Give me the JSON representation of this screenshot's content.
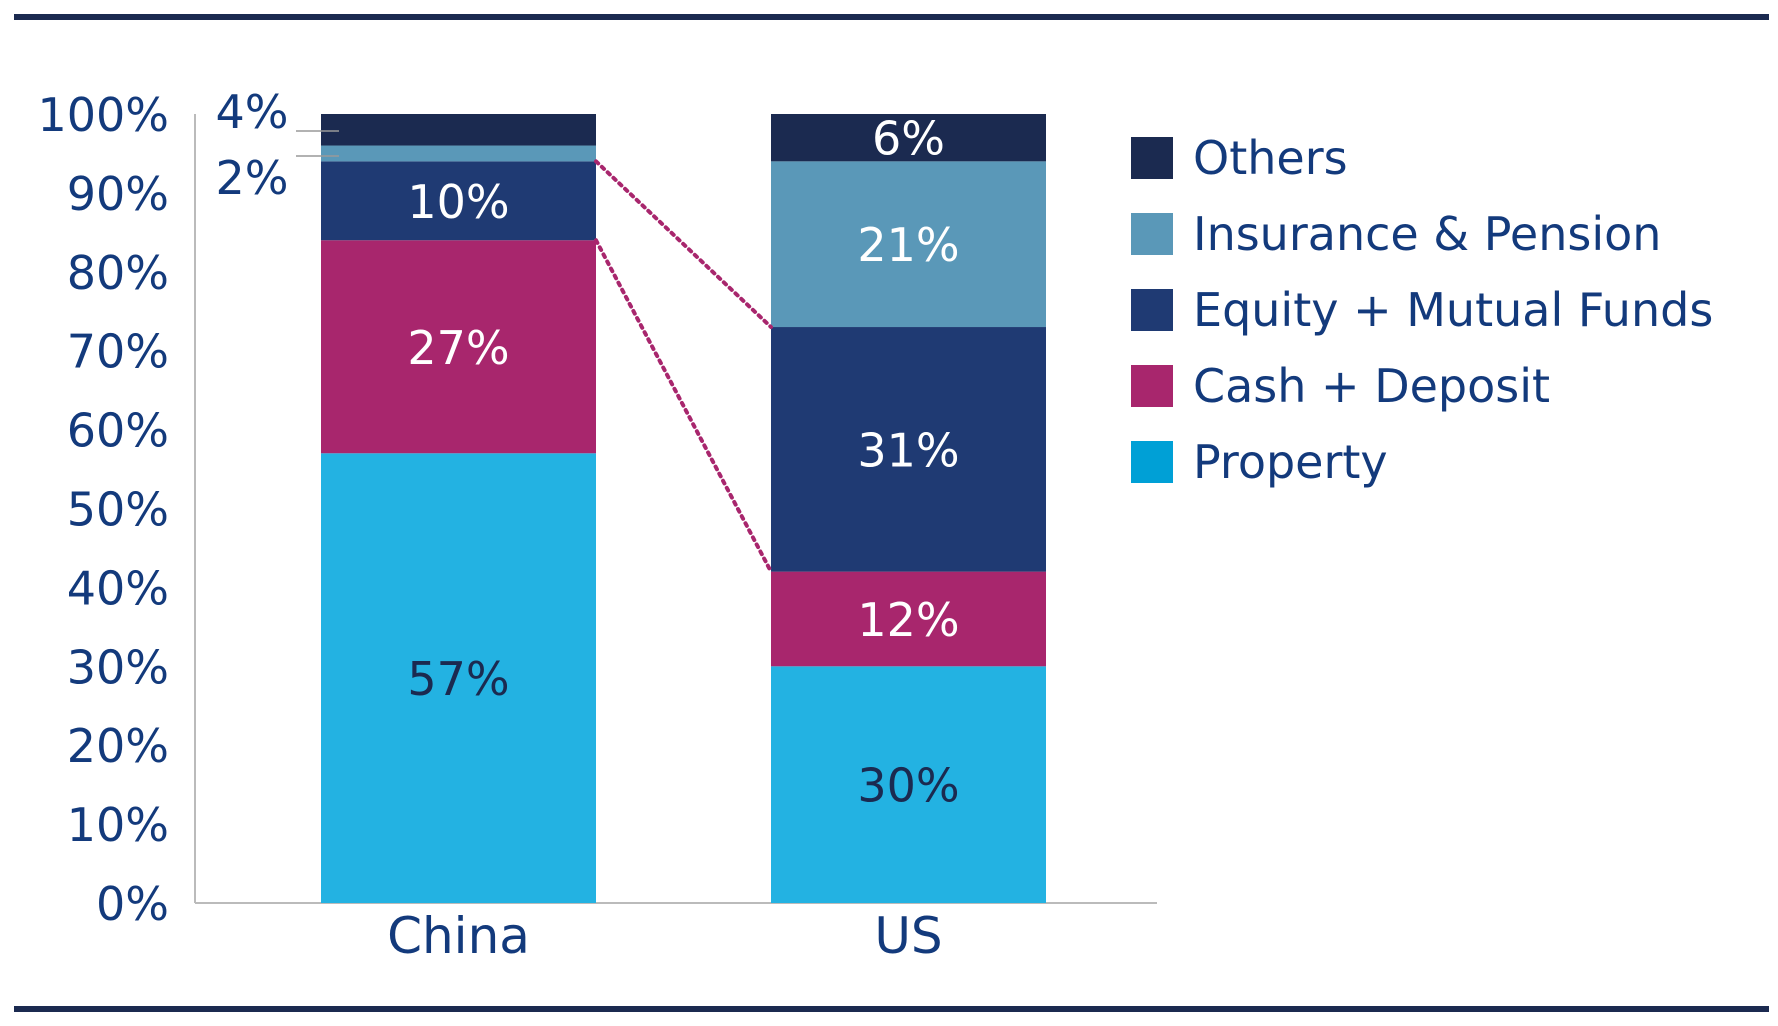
{
  "chart_data": {
    "type": "stacked-bar",
    "categories": [
      "China",
      "US"
    ],
    "ylim": [
      0,
      100
    ],
    "yticks": [
      "0%",
      "10%",
      "20%",
      "30%",
      "40%",
      "50%",
      "60%",
      "70%",
      "80%",
      "90%",
      "100%"
    ],
    "series": [
      {
        "name": "Property",
        "values": [
          57,
          30
        ],
        "labels": [
          "57%",
          "30%"
        ],
        "color": "#23B2E2",
        "legend_color": "#00A0D6",
        "label_color": "#1B2A50"
      },
      {
        "name": "Cash + Deposit",
        "values": [
          27,
          12
        ],
        "labels": [
          "27%",
          "12%"
        ],
        "color": "#A8266D",
        "legend_color": "#A8266D",
        "label_color": "#FFFFFF"
      },
      {
        "name": "Equity + Mutual Funds",
        "values": [
          10,
          31
        ],
        "labels": [
          "10%",
          "31%"
        ],
        "color": "#1F3A73",
        "legend_color": "#1F3A73",
        "label_color": "#FFFFFF"
      },
      {
        "name": "Insurance & Pension",
        "values": [
          2,
          21
        ],
        "labels": [
          "2%",
          "21%"
        ],
        "color": "#5A98B8",
        "legend_color": "#5A98B8",
        "label_color": "#FFFFFF"
      },
      {
        "name": "Others",
        "values": [
          4,
          6
        ],
        "labels": [
          "4%",
          "6%"
        ],
        "color": "#1B2A50",
        "legend_color": "#1B2A50",
        "label_color": "#FFFFFF"
      }
    ],
    "legend_position": "right",
    "grid": false,
    "connectors": "dotted lines linking China and US Cash + Deposit and Equity + Mutual Funds tops",
    "connector_color": "#A8266D",
    "text_color": "#133A7C"
  }
}
